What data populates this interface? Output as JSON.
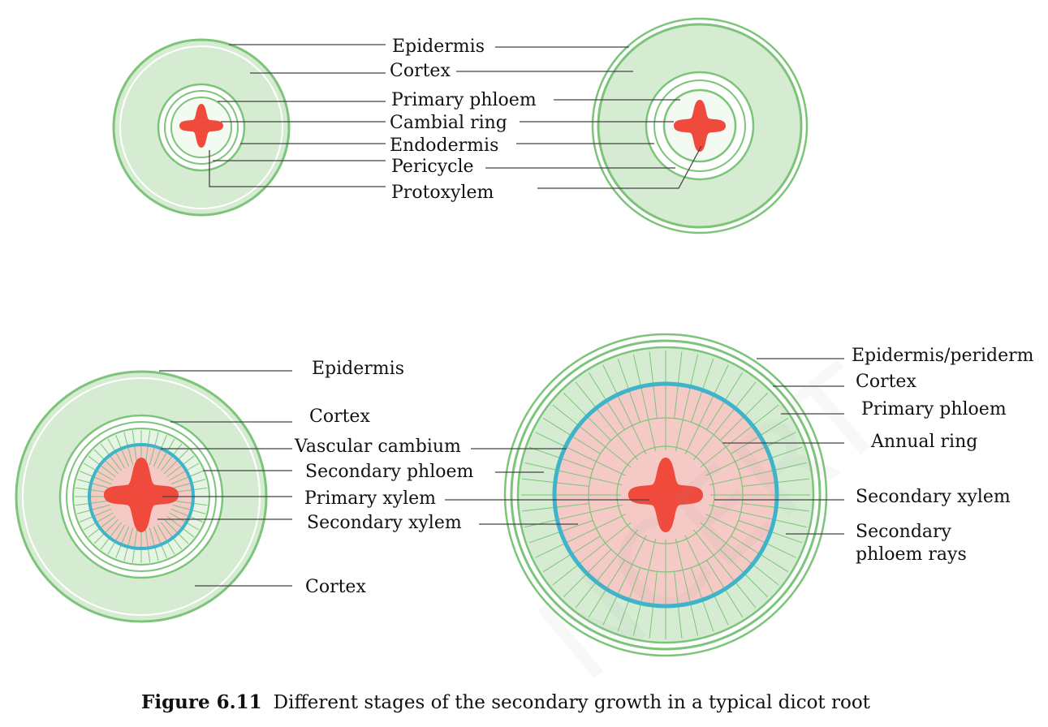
{
  "top_stages": {
    "labels": [
      "Epidermis",
      "Cortex",
      "Primary phloem",
      "Cambial ring",
      "Endodermis",
      "Pericycle",
      "Protoxylem"
    ]
  },
  "bottom_left": {
    "labels": [
      "Epidermis",
      "Cortex",
      "Vascular cambium",
      "Secondary phloem",
      "Primary xylem",
      "Secondary xylem",
      "Cortex"
    ]
  },
  "bottom_right": {
    "labels": [
      "Epidermis/periderm",
      "Cortex",
      "Primary phloem",
      "Annual ring",
      "Secondary xylem",
      "Secondary\nphloem rays"
    ]
  },
  "caption": {
    "number": "Figure 6.11",
    "text": "Different stages of the secondary growth in a typical dicot root"
  },
  "watermark": {
    "line1": "NCERT",
    "line2": "not to be republished"
  },
  "colors": {
    "tissue_green": "#d6ecd2",
    "line_green": "#7cc47a",
    "xylem_red": "#ef4a3c",
    "secondary_xylem_pink": "#f5c9c6",
    "cambium_blue": "#3fb3c9"
  }
}
